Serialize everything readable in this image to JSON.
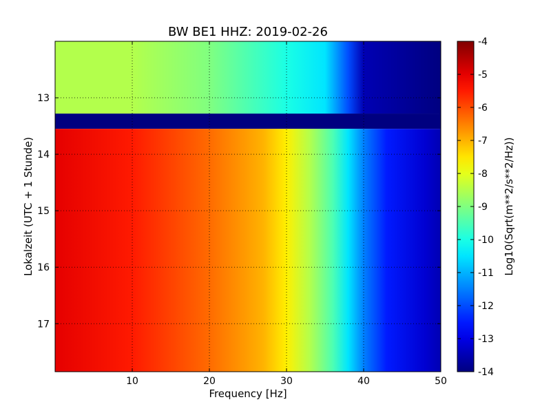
{
  "chart_data": {
    "type": "heatmap",
    "title": "BW BE1 HHZ: 2019-02-26",
    "xlabel": "Frequency [Hz]",
    "ylabel": "Lokalzeit (UTC + 1 Stunde)",
    "xlim": [
      0,
      50
    ],
    "ylim": [
      12.0,
      17.85
    ],
    "y_inverted": true,
    "x_ticks": [
      "10",
      "20",
      "30",
      "40",
      "50"
    ],
    "y_ticks": [
      "13",
      "14",
      "15",
      "16",
      "17"
    ],
    "grid": true,
    "colorbar": {
      "label": "Log10(Sqrt(m**2/s**2/Hz))",
      "range": [
        -14,
        -4
      ],
      "ticks": [
        "-4",
        "-5",
        "-6",
        "-7",
        "-8",
        "-9",
        "-10",
        "-11",
        "-12",
        "-13",
        "-14"
      ],
      "colormap": "jet"
    },
    "regions": [
      {
        "time_start": 12.0,
        "time_end": 13.28,
        "level_by_frequency": [
          [
            0,
            -8.5
          ],
          [
            10,
            -8.5
          ],
          [
            20,
            -9.0
          ],
          [
            30,
            -10.0
          ],
          [
            35,
            -10.5
          ],
          [
            38,
            -12.0
          ],
          [
            40,
            -13.5
          ],
          [
            50,
            -14.0
          ]
        ]
      },
      {
        "time_start": 13.28,
        "time_end": 13.55,
        "level_by_frequency": [
          [
            0,
            -14.0
          ],
          [
            50,
            -14.0
          ]
        ]
      },
      {
        "time_start": 13.55,
        "time_end": 17.85,
        "level_by_frequency": [
          [
            0,
            -5.0
          ],
          [
            10,
            -5.5
          ],
          [
            20,
            -6.3
          ],
          [
            27,
            -7.0
          ],
          [
            30,
            -7.6
          ],
          [
            33,
            -8.5
          ],
          [
            36,
            -9.5
          ],
          [
            38,
            -10.5
          ],
          [
            40,
            -11.5
          ],
          [
            43,
            -12.5
          ],
          [
            48,
            -13.2
          ],
          [
            50,
            -13.5
          ]
        ]
      }
    ]
  }
}
